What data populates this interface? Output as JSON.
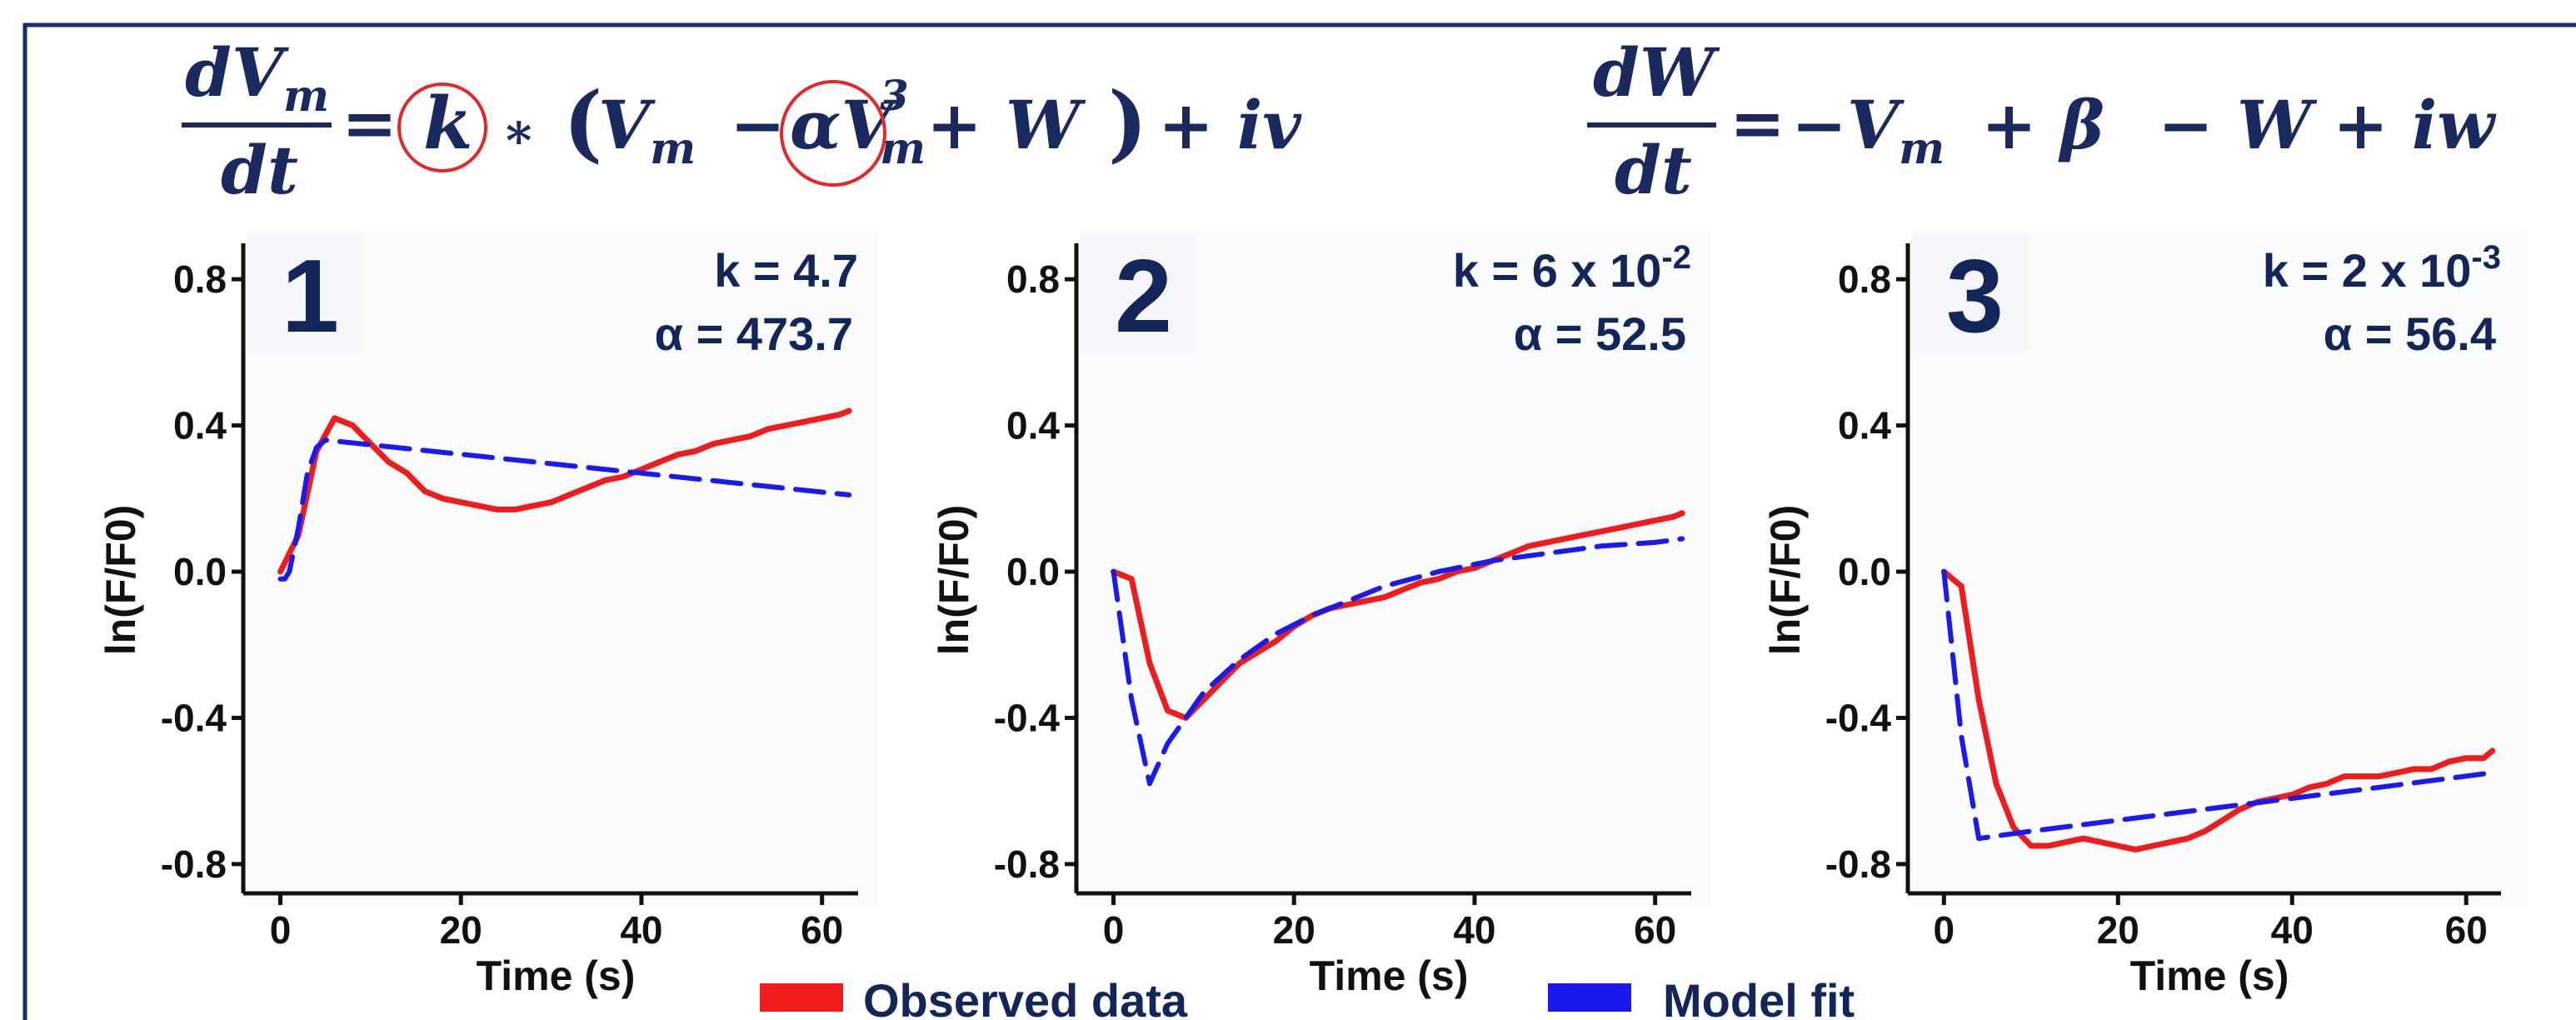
{
  "colors": {
    "observed": "#ee1c1c",
    "model": "#1a1aee",
    "navy": "#13265a",
    "frame": "#1a2a6e",
    "circle": "#e32626"
  },
  "equations": {
    "eq1": {
      "num": "dV",
      "num_sub": "m",
      "den": "dt",
      "eq": "=",
      "k": "k",
      "times": "∗",
      "lp": "(",
      "vm": "V",
      "vm_sub": "m",
      "minus": "−",
      "alpha": "αV",
      "cube_sup": "3",
      "cube_sub": "m",
      "plus_w": "+ W",
      "rp": ")",
      "plus_iv": "+ iv"
    },
    "eq2": {
      "num": "dW",
      "den": "dt",
      "eq": "=",
      "neg_vm": "−V",
      "vm_sub": "m",
      "plus_beta": "+  β",
      "minus_w": "− W",
      "plus_iw": "+ iw"
    }
  },
  "legend": {
    "observed": "Observed data",
    "model": "Model fit"
  },
  "chart_data": [
    {
      "type": "line",
      "panel_label": "1",
      "params": {
        "k": "k = 4.7",
        "alpha": "α = 473.7"
      },
      "xlabel": "Time (s)",
      "ylabel": "ln(F/F0)",
      "xlim": [
        -3,
        64
      ],
      "ylim": [
        -0.88,
        0.88
      ],
      "xticks": [
        "0",
        "20",
        "40",
        "60"
      ],
      "xtick_values": [
        0,
        20,
        40,
        60
      ],
      "yticks": [
        "0.8",
        "0.4",
        "0.0",
        "-0.4",
        "-0.8"
      ],
      "ytick_values": [
        0.8,
        0.4,
        0.0,
        -0.4,
        -0.8
      ],
      "series": [
        {
          "name": "Observed data",
          "style": "solid",
          "x": [
            0,
            2,
            4,
            6,
            8,
            10,
            12,
            14,
            16,
            18,
            20,
            22,
            24,
            26,
            28,
            30,
            32,
            34,
            36,
            38,
            40,
            42,
            44,
            46,
            48,
            50,
            52,
            54,
            56,
            58,
            60,
            62,
            63
          ],
          "y": [
            0.0,
            0.1,
            0.33,
            0.42,
            0.4,
            0.35,
            0.3,
            0.27,
            0.22,
            0.2,
            0.19,
            0.18,
            0.17,
            0.17,
            0.18,
            0.19,
            0.21,
            0.23,
            0.25,
            0.26,
            0.28,
            0.3,
            0.32,
            0.33,
            0.35,
            0.36,
            0.37,
            0.39,
            0.4,
            0.41,
            0.42,
            0.43,
            0.44
          ]
        },
        {
          "name": "Model fit",
          "style": "dashed",
          "x": [
            0,
            0.5,
            1,
            2,
            3,
            4,
            5,
            63
          ],
          "y": [
            -0.02,
            -0.02,
            0.0,
            0.12,
            0.27,
            0.34,
            0.36,
            0.21
          ]
        }
      ]
    },
    {
      "type": "line",
      "panel_label": "2",
      "params": {
        "k": "k = 6 x 10",
        "k_exp": "-2",
        "alpha": "α = 52.5"
      },
      "xlabel": "Time (s)",
      "ylabel": "ln(F/F0)",
      "xlim": [
        -3,
        64
      ],
      "ylim": [
        -0.88,
        0.88
      ],
      "xticks": [
        "0",
        "20",
        "40",
        "60"
      ],
      "xtick_values": [
        0,
        20,
        40,
        60
      ],
      "yticks": [
        "0.8",
        "0.4",
        "0.0",
        "-0.4",
        "-0.8"
      ],
      "ytick_values": [
        0.8,
        0.4,
        0.0,
        -0.4,
        -0.8
      ],
      "series": [
        {
          "name": "Observed data",
          "style": "solid",
          "x": [
            0,
            2,
            4,
            6,
            8,
            10,
            12,
            14,
            16,
            18,
            20,
            22,
            24,
            26,
            28,
            30,
            32,
            34,
            36,
            38,
            40,
            42,
            44,
            46,
            48,
            50,
            52,
            54,
            56,
            58,
            60,
            62,
            63
          ],
          "y": [
            0.0,
            -0.02,
            -0.25,
            -0.38,
            -0.4,
            -0.35,
            -0.3,
            -0.25,
            -0.22,
            -0.19,
            -0.15,
            -0.12,
            -0.1,
            -0.09,
            -0.08,
            -0.07,
            -0.05,
            -0.03,
            -0.02,
            0.0,
            0.01,
            0.03,
            0.05,
            0.07,
            0.08,
            0.09,
            0.1,
            0.11,
            0.12,
            0.13,
            0.14,
            0.15,
            0.16
          ]
        },
        {
          "name": "Model fit",
          "style": "dashed",
          "x": [
            0,
            2,
            4,
            6,
            8,
            10,
            14,
            18,
            22,
            26,
            30,
            36,
            42,
            48,
            54,
            60,
            63
          ],
          "y": [
            0.0,
            -0.35,
            -0.58,
            -0.47,
            -0.4,
            -0.33,
            -0.24,
            -0.17,
            -0.12,
            -0.08,
            -0.04,
            0.0,
            0.03,
            0.05,
            0.07,
            0.08,
            0.09
          ]
        }
      ]
    },
    {
      "type": "line",
      "panel_label": "3",
      "params": {
        "k": "k = 2 x 10",
        "k_exp": "-3",
        "alpha": "α = 56.4"
      },
      "xlabel": "Time (s)",
      "ylabel": "ln(F/F0)",
      "xlim": [
        -3,
        64
      ],
      "ylim": [
        -0.88,
        0.88
      ],
      "xticks": [
        "0",
        "20",
        "40",
        "60"
      ],
      "xtick_values": [
        0,
        20,
        40,
        60
      ],
      "yticks": [
        "0.8",
        "0.4",
        "0.0",
        "-0.4",
        "-0.8"
      ],
      "ytick_values": [
        0.8,
        0.4,
        0.0,
        -0.4,
        -0.8
      ],
      "series": [
        {
          "name": "Observed data",
          "style": "solid",
          "x": [
            0,
            2,
            4,
            6,
            8,
            10,
            12,
            14,
            16,
            18,
            20,
            22,
            24,
            26,
            28,
            30,
            32,
            34,
            36,
            38,
            40,
            42,
            44,
            46,
            48,
            50,
            52,
            54,
            56,
            58,
            60,
            62,
            63
          ],
          "y": [
            0.0,
            -0.04,
            -0.35,
            -0.58,
            -0.7,
            -0.75,
            -0.75,
            -0.74,
            -0.73,
            -0.74,
            -0.75,
            -0.76,
            -0.75,
            -0.74,
            -0.73,
            -0.71,
            -0.68,
            -0.65,
            -0.63,
            -0.62,
            -0.61,
            -0.59,
            -0.58,
            -0.56,
            -0.56,
            -0.56,
            -0.55,
            -0.54,
            -0.54,
            -0.52,
            -0.51,
            -0.51,
            -0.49
          ]
        },
        {
          "name": "Model fit",
          "style": "dashed",
          "x": [
            0,
            2,
            4,
            10,
            20,
            30,
            40,
            50,
            63
          ],
          "y": [
            0.0,
            -0.45,
            -0.73,
            -0.71,
            -0.68,
            -0.65,
            -0.62,
            -0.59,
            -0.55
          ]
        }
      ]
    }
  ]
}
